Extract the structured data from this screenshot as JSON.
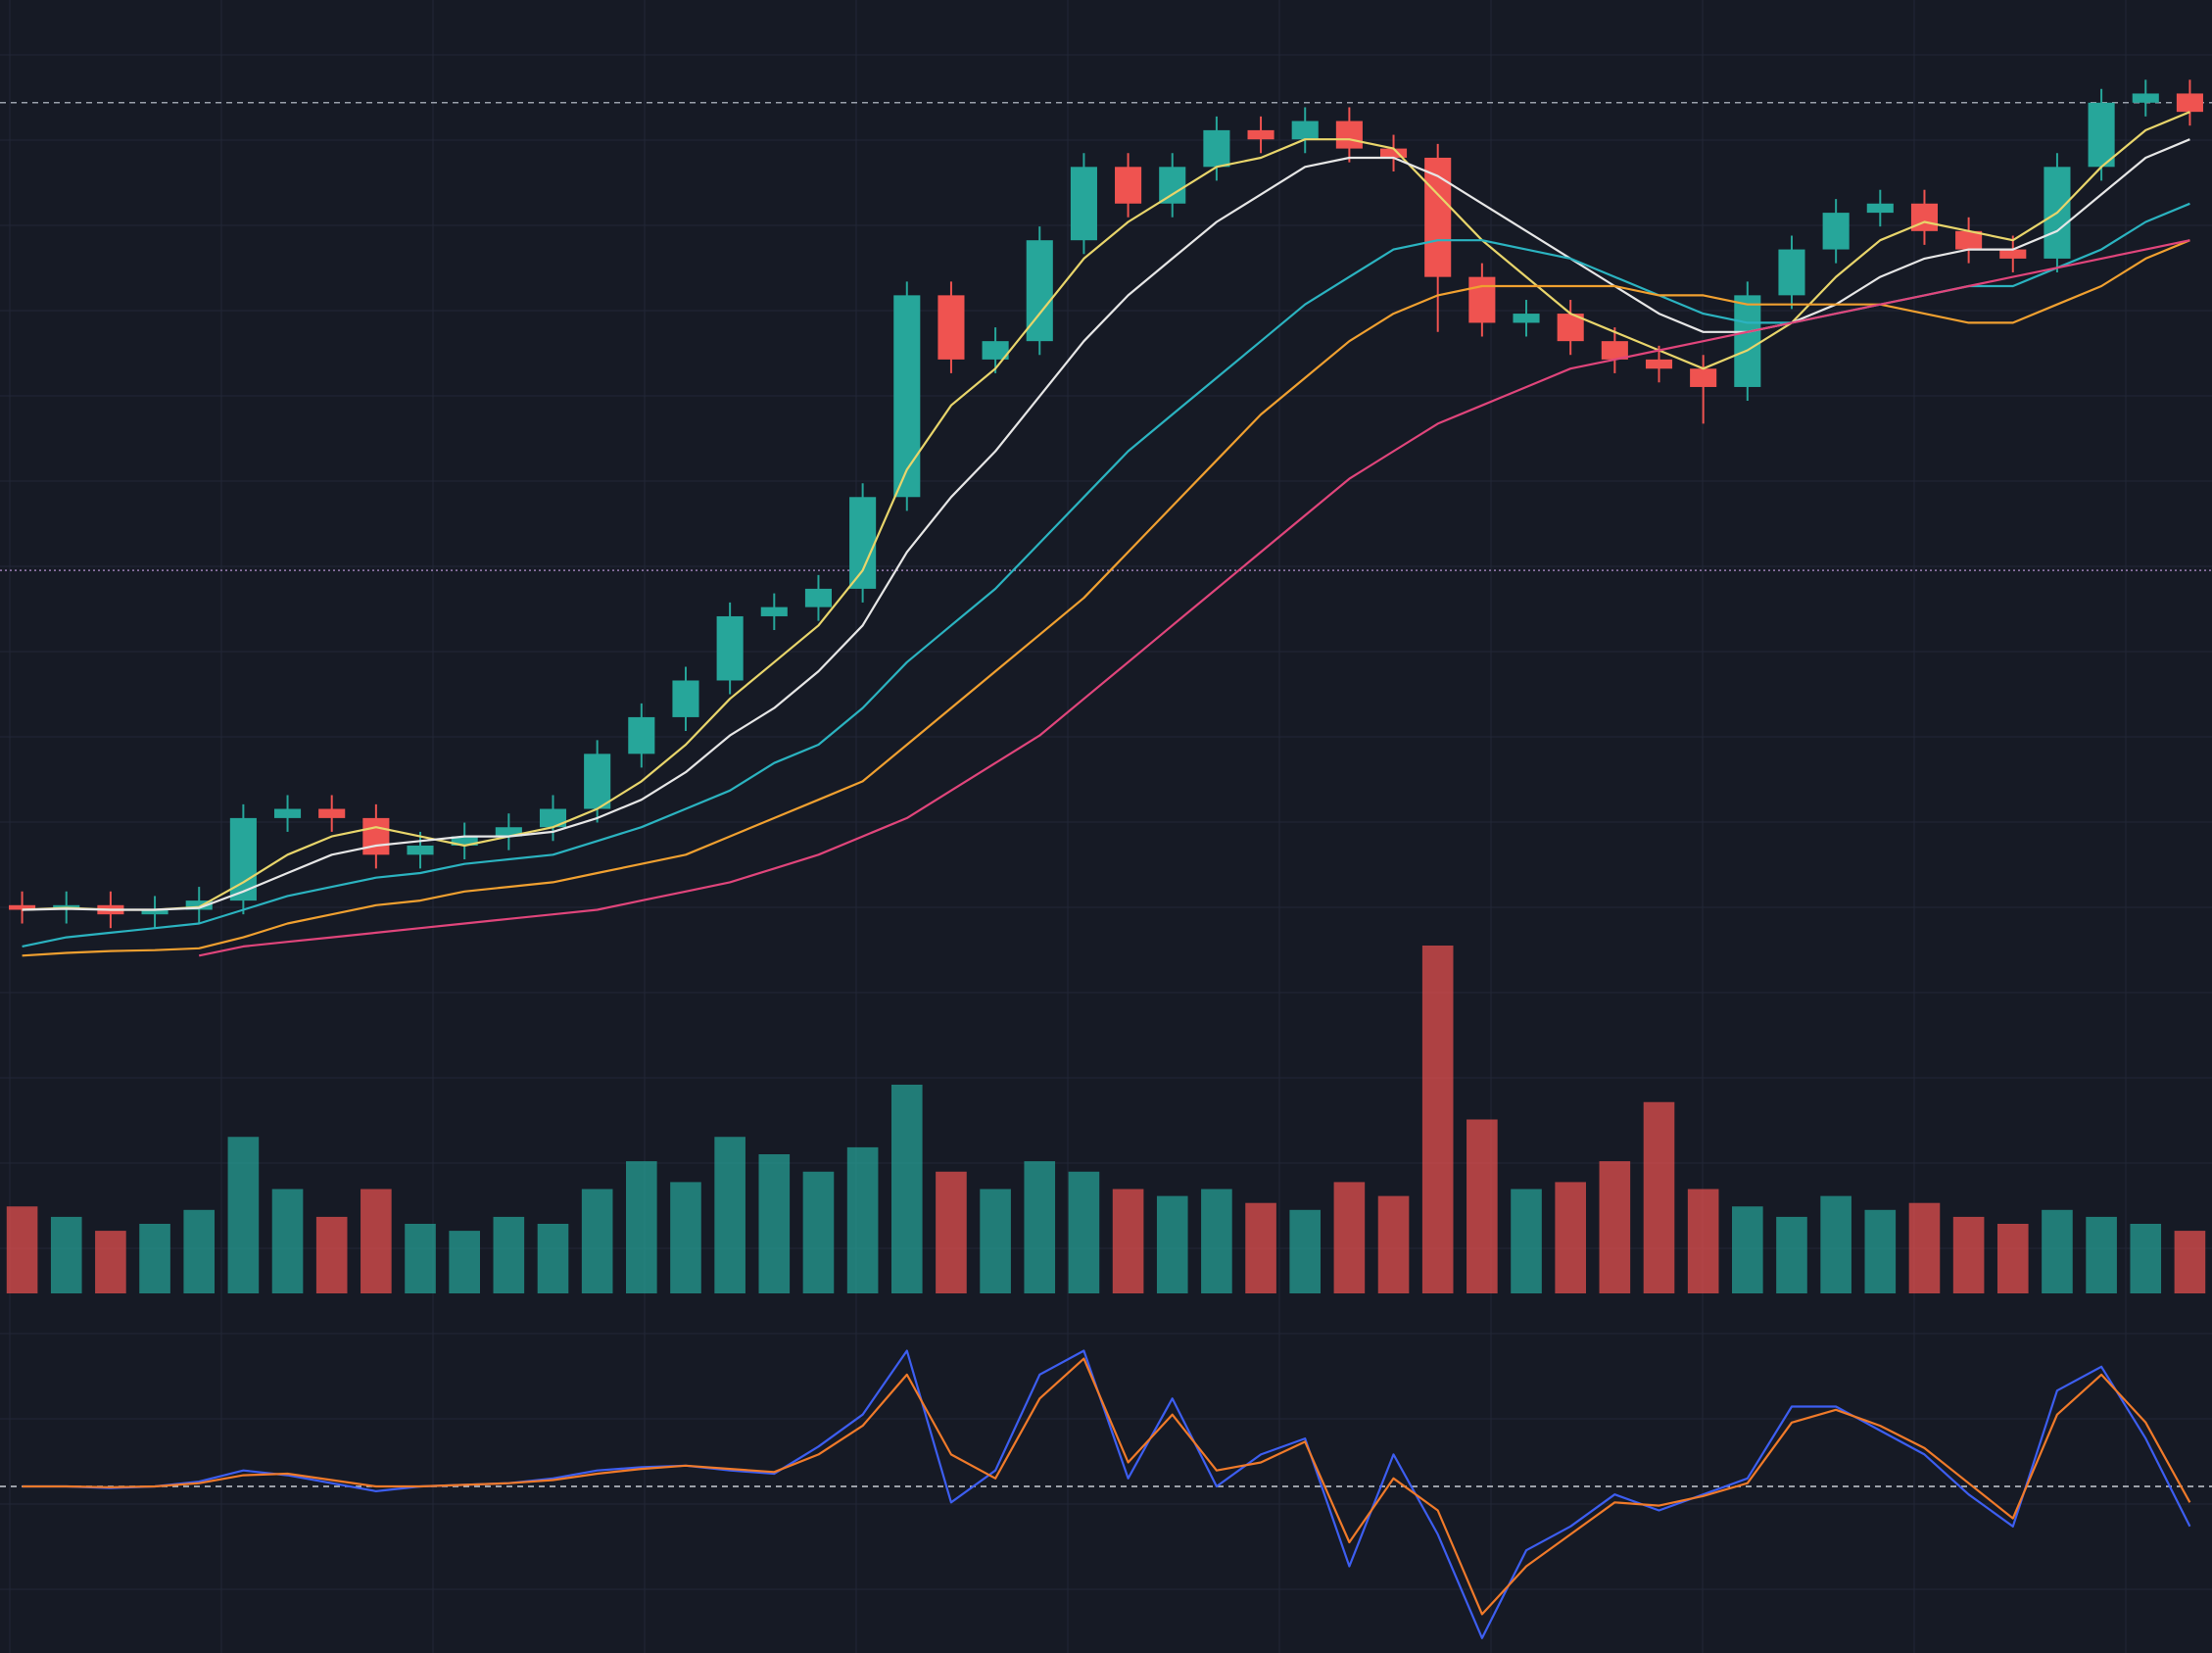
{
  "chart_data": [
    {
      "type": "candlestick",
      "up_color": "#26a69a",
      "down_color": "#ef5350",
      "ylim": [
        0,
        100
      ],
      "grid": true,
      "open": [
        7.5,
        7,
        7.5,
        6.5,
        7,
        8,
        17,
        18,
        17,
        13,
        14,
        15,
        16,
        18,
        24,
        28,
        32,
        39,
        40,
        42,
        52,
        74,
        67,
        69,
        80,
        88,
        84,
        88,
        92,
        91,
        93,
        90,
        89,
        76,
        71,
        72,
        69,
        67,
        66,
        64,
        74,
        79,
        83,
        84,
        81,
        79,
        78,
        88,
        95,
        96
      ],
      "high": [
        9,
        9,
        9,
        8.5,
        9.5,
        18.5,
        19.5,
        19.5,
        18.5,
        15.5,
        16.5,
        17.5,
        19.5,
        25.5,
        29.5,
        33.5,
        40.5,
        41.5,
        43.5,
        53.5,
        75.5,
        75.5,
        70.5,
        81.5,
        89.5,
        89.5,
        89.5,
        93.5,
        93.5,
        94.5,
        94.5,
        91.5,
        90.5,
        77.5,
        73.5,
        73.5,
        70.5,
        68.5,
        67.5,
        75.5,
        80.5,
        84.5,
        85.5,
        85.5,
        82.5,
        80.5,
        89.5,
        96.5,
        97.5,
        97.5
      ],
      "low": [
        5.5,
        5.5,
        5,
        5,
        5.5,
        6.5,
        15.5,
        15.5,
        11.5,
        11.5,
        12.5,
        13.5,
        14.5,
        16.5,
        22.5,
        26.5,
        30.5,
        37.5,
        38.5,
        40.5,
        50.5,
        65.5,
        65.5,
        67.5,
        78.5,
        82.5,
        82.5,
        86.5,
        89.5,
        89.5,
        88.5,
        87.5,
        70,
        69.5,
        69.5,
        67.5,
        65.5,
        64.5,
        60,
        62.5,
        72.5,
        77.5,
        81.5,
        79.5,
        77.5,
        76.5,
        76.5,
        86.5,
        93.5,
        92.5
      ],
      "close": [
        7,
        7.5,
        6.5,
        7,
        8,
        17,
        18,
        17,
        13,
        14,
        15,
        16,
        18,
        24,
        28,
        32,
        39,
        40,
        42,
        52,
        74,
        67,
        69,
        80,
        88,
        84,
        88,
        92,
        91,
        93,
        90,
        89,
        76,
        71,
        72,
        69,
        67,
        66,
        64,
        74,
        79,
        83,
        84,
        81,
        79,
        78,
        88,
        95,
        96,
        94
      ],
      "hlines": [
        {
          "value": 95,
          "color": "#9aa0ab",
          "style": "dashed"
        },
        {
          "value": 44,
          "color": "#9c7fb5",
          "style": "dotted"
        }
      ],
      "series": [
        {
          "color": "#e8d56b",
          "values": [
            7,
            7.2,
            7,
            7,
            7.3,
            10,
            13,
            15,
            16,
            15,
            14,
            15,
            16,
            18,
            21,
            25,
            30,
            34,
            38,
            44,
            55,
            62,
            66,
            72,
            78,
            82,
            85,
            88,
            89,
            91,
            91,
            90,
            85,
            80,
            76,
            72,
            70,
            68,
            66,
            68,
            71,
            76,
            80,
            82,
            81,
            80,
            83,
            88,
            92,
            94
          ]
        },
        {
          "color": "#e6e6e6",
          "values": [
            7,
            7.1,
            7,
            7,
            7.2,
            9,
            11,
            13,
            14,
            14.5,
            15,
            15,
            15.5,
            17,
            19,
            22,
            26,
            29,
            33,
            38,
            46,
            52,
            57,
            63,
            69,
            74,
            78,
            82,
            85,
            88,
            89,
            89,
            87,
            84,
            81,
            78,
            75,
            72,
            70,
            70,
            71,
            73,
            76,
            78,
            79,
            79,
            81,
            85,
            89,
            91
          ]
        },
        {
          "color": "#2bb3c0",
          "values": [
            3,
            4,
            4.5,
            5,
            5.5,
            7,
            8.5,
            9.5,
            10.5,
            11,
            12,
            12.5,
            13,
            14.5,
            16,
            18,
            20,
            23,
            25,
            29,
            34,
            38,
            42,
            47,
            52,
            57,
            61,
            65,
            69,
            73,
            76,
            79,
            80,
            80,
            79,
            78,
            76,
            74,
            72,
            71,
            71,
            72,
            73,
            74,
            75,
            75,
            77,
            79,
            82,
            84
          ]
        },
        {
          "color": "#f0a030",
          "values": [
            2,
            2.3,
            2.5,
            2.6,
            2.8,
            4,
            5.5,
            6.5,
            7.5,
            8,
            9,
            9.5,
            10,
            11,
            12,
            13,
            15,
            17,
            19,
            21,
            25,
            29,
            33,
            37,
            41,
            46,
            51,
            56,
            61,
            65,
            69,
            72,
            74,
            75,
            75,
            75,
            75,
            74,
            74,
            73,
            73,
            73,
            73,
            72,
            71,
            71,
            73,
            75,
            78,
            80
          ]
        },
        {
          "color": "#e0457b",
          "values": [
            null,
            null,
            null,
            null,
            2,
            3,
            3.5,
            4,
            4.5,
            5,
            5.5,
            6,
            6.5,
            7,
            8,
            9,
            10,
            11.5,
            13,
            15,
            17,
            20,
            23,
            26,
            30,
            34,
            38,
            42,
            46,
            50,
            54,
            57,
            60,
            62,
            64,
            66,
            67,
            68,
            69,
            70,
            71,
            72,
            73,
            74,
            75,
            76,
            77,
            78,
            79,
            80
          ]
        }
      ]
    },
    {
      "type": "bar",
      "ylim": [
        0,
        100
      ],
      "values": [
        25,
        22,
        18,
        20,
        24,
        45,
        30,
        22,
        30,
        20,
        18,
        22,
        20,
        30,
        38,
        32,
        45,
        40,
        35,
        42,
        60,
        35,
        30,
        38,
        35,
        30,
        28,
        30,
        26,
        24,
        32,
        28,
        100,
        50,
        30,
        32,
        38,
        55,
        30,
        25,
        22,
        28,
        24,
        26,
        22,
        20,
        24,
        22,
        20,
        18
      ]
    },
    {
      "type": "line",
      "ylim": [
        -100,
        100
      ],
      "hlines": [
        {
          "value": 0,
          "color": "#c8ccd4",
          "style": "dashed"
        }
      ],
      "series": [
        {
          "color": "#3d5ef0",
          "values": [
            0,
            0,
            -1,
            0,
            3,
            10,
            7,
            2,
            -3,
            0,
            1,
            2,
            5,
            10,
            12,
            13,
            10,
            8,
            25,
            45,
            85,
            -10,
            10,
            70,
            85,
            5,
            55,
            0,
            20,
            30,
            -50,
            20,
            -30,
            -95,
            -40,
            -25,
            -5,
            -15,
            -5,
            5,
            50,
            50,
            35,
            20,
            -5,
            -25,
            60,
            75,
            30,
            -25
          ]
        },
        {
          "color": "#f07a2a",
          "values": [
            0,
            0,
            -0.5,
            0,
            2,
            7,
            8,
            4,
            0,
            0,
            1,
            2,
            4,
            8,
            11,
            13,
            11,
            9,
            20,
            38,
            70,
            20,
            5,
            55,
            80,
            15,
            45,
            10,
            15,
            28,
            -35,
            5,
            -15,
            -80,
            -50,
            -30,
            -10,
            -12,
            -6,
            2,
            40,
            48,
            38,
            24,
            2,
            -20,
            45,
            70,
            40,
            -10
          ]
        }
      ]
    }
  ]
}
